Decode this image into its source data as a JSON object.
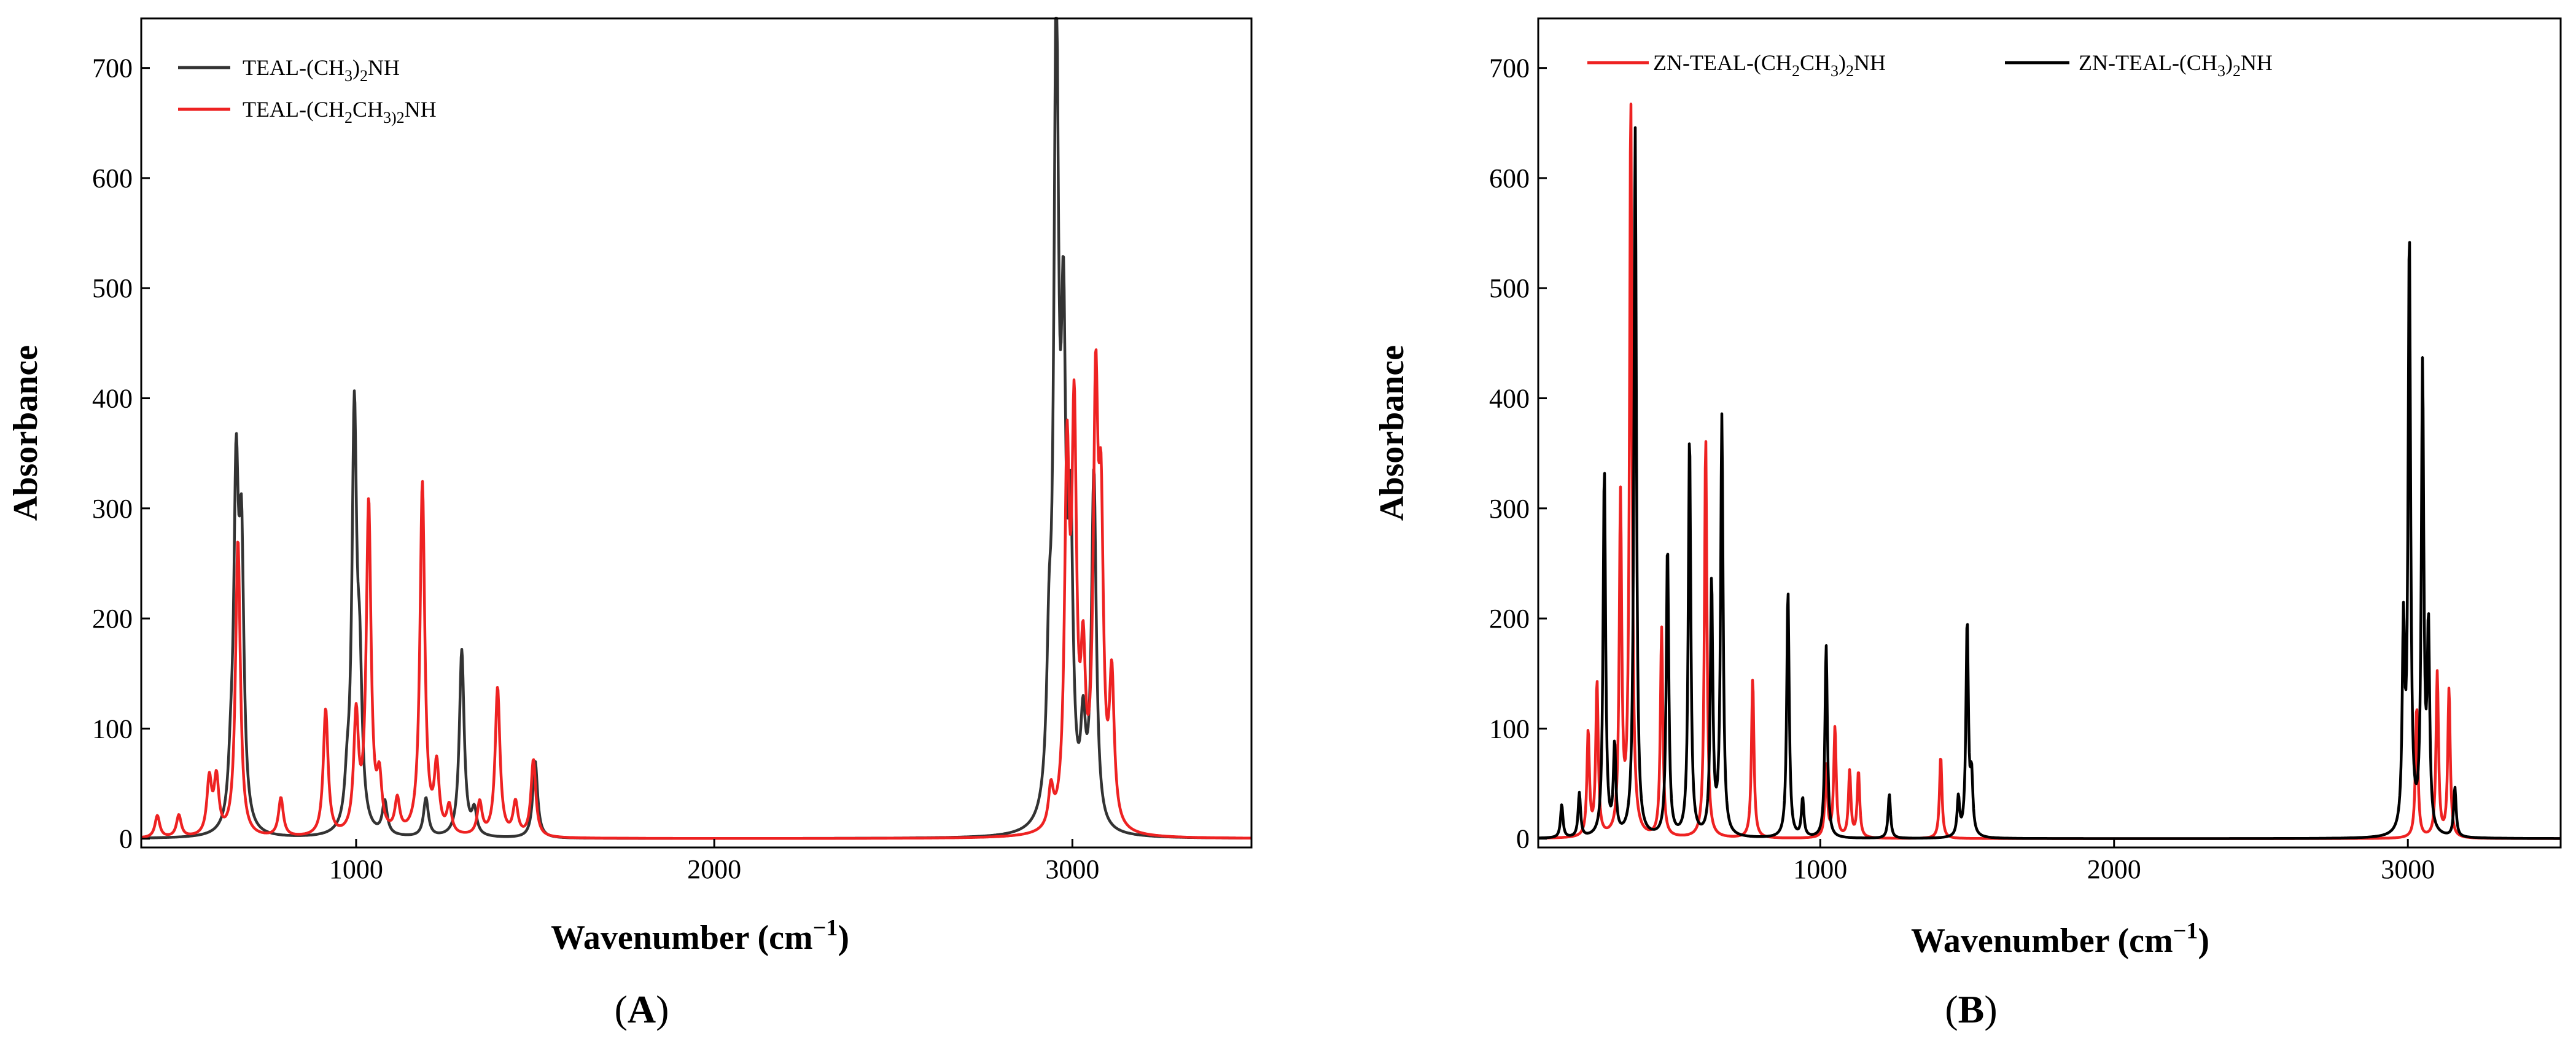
{
  "chart_data": [
    {
      "panel": "A",
      "panel_label": "A",
      "type": "line",
      "xlabel": "Wavenumber (cm",
      "xlabel_sup": "−1",
      "xlabel_close": ")",
      "ylabel": "Absorbance",
      "xlim": [
        400,
        3500
      ],
      "ylim": [
        -8,
        745
      ],
      "xticks": [
        1000,
        2000,
        3000
      ],
      "yticks": [
        0,
        100,
        200,
        300,
        400,
        500,
        600,
        700
      ],
      "hwhm": 8,
      "series": [
        {
          "name": "TEAL-(CH3)2NH",
          "legend_main": "TEAL-(CH",
          "legend_sub1": "3",
          "legend_mid": ")",
          "legend_sub2": "2",
          "legend_end": "NH",
          "color": "#333333",
          "peaks": [
            [
              650,
              38
            ],
            [
              665,
              305
            ],
            [
              680,
              240
            ],
            [
              975,
              32
            ],
            [
              995,
              375
            ],
            [
              1010,
              120
            ],
            [
              1080,
              30
            ],
            [
              1195,
              35
            ],
            [
              1295,
              170
            ],
            [
              1330,
              22
            ],
            [
              1500,
              70
            ],
            [
              2935,
              120
            ],
            [
              2955,
              715
            ],
            [
              2975,
              390
            ],
            [
              2995,
              240
            ],
            [
              3030,
              80
            ],
            [
              3060,
              320
            ]
          ]
        },
        {
          "name": "TEAL-(CH2CH3)2NH",
          "legend_main": "TEAL-(CH",
          "legend_sub1": "2",
          "legend_mid": "CH",
          "legend_sub2": "3)2",
          "legend_end": "NH",
          "color": "#ee2222",
          "peaks": [
            [
              445,
              20
            ],
            [
              505,
              20
            ],
            [
              590,
              50
            ],
            [
              610,
              50
            ],
            [
              670,
              270
            ],
            [
              790,
              35
            ],
            [
              915,
              115
            ],
            [
              1000,
              105
            ],
            [
              1035,
              300
            ],
            [
              1065,
              45
            ],
            [
              1115,
              30
            ],
            [
              1185,
              320
            ],
            [
              1225,
              60
            ],
            [
              1260,
              25
            ],
            [
              1345,
              30
            ],
            [
              1395,
              135
            ],
            [
              1445,
              30
            ],
            [
              1495,
              70
            ],
            [
              2940,
              35
            ],
            [
              2985,
              320
            ],
            [
              3005,
              350
            ],
            [
              3030,
              130
            ],
            [
              3065,
              370
            ],
            [
              3080,
              250
            ],
            [
              3110,
              130
            ]
          ]
        }
      ]
    },
    {
      "panel": "B",
      "panel_label": "B",
      "type": "line",
      "xlabel": "Wavenumber (cm",
      "xlabel_sup": "−1",
      "xlabel_close": ")",
      "ylabel": "Absorbance",
      "xlim": [
        40,
        3520
      ],
      "ylim": [
        -8,
        745
      ],
      "xticks": [
        1000,
        2000,
        3000
      ],
      "yticks": [
        0,
        100,
        200,
        300,
        400,
        500,
        600,
        700
      ],
      "hwhm": 5,
      "series": [
        {
          "name": "ZN-TEAL-(CH2CH3)2NH",
          "legend_main": "ZN-TEAL-(CH",
          "legend_sub1": "2",
          "legend_mid": "CH",
          "legend_sub2": "3",
          "legend_close": ")",
          "legend_sub3": "2",
          "legend_end": "NH",
          "color": "#ee2222",
          "peaks": [
            [
              210,
              95
            ],
            [
              240,
              140
            ],
            [
              320,
              305
            ],
            [
              355,
              670
            ],
            [
              460,
              190
            ],
            [
              610,
              365
            ],
            [
              770,
              145
            ],
            [
              1020,
              65
            ],
            [
              1050,
              100
            ],
            [
              1100,
              60
            ],
            [
              1130,
              60
            ],
            [
              1410,
              75
            ],
            [
              3030,
              120
            ],
            [
              3100,
              150
            ],
            [
              3140,
              135
            ]
          ]
        },
        {
          "name": "ZN-TEAL-(CH3)2NH",
          "legend_main": "ZN-TEAL-(CH",
          "legend_sub1": "3",
          "legend_close": ")",
          "legend_sub2": "2",
          "legend_end": "NH",
          "color": "#000000",
          "peaks": [
            [
              120,
              30
            ],
            [
              180,
              40
            ],
            [
              265,
              335
            ],
            [
              300,
              80
            ],
            [
              370,
              645
            ],
            [
              480,
              265
            ],
            [
              555,
              365
            ],
            [
              630,
              230
            ],
            [
              665,
              380
            ],
            [
              890,
              225
            ],
            [
              940,
              35
            ],
            [
              1020,
              175
            ],
            [
              1235,
              40
            ],
            [
              1470,
              35
            ],
            [
              1500,
              195
            ],
            [
              1515,
              50
            ],
            [
              2985,
              180
            ],
            [
              3005,
              540
            ],
            [
              3050,
              420
            ],
            [
              3070,
              180
            ],
            [
              3160,
              45
            ]
          ]
        }
      ]
    }
  ]
}
